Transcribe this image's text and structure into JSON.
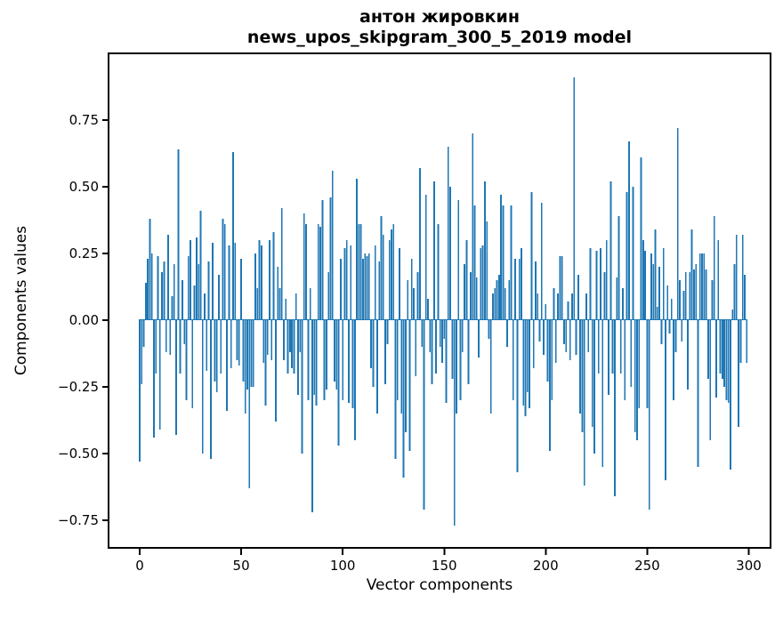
{
  "chart_data": {
    "type": "bar",
    "title_line1": "антон жировкин",
    "title_line2": "news_upos_skipgram_300_5_2019 model",
    "xlabel": "Vector components",
    "ylabel": "Components values",
    "n_points": 300,
    "xticks": [
      0,
      50,
      100,
      150,
      200,
      250,
      300
    ],
    "yticks": [
      {
        "label": "0.75",
        "value": 0.75
      },
      {
        "label": "0.50",
        "value": 0.5
      },
      {
        "label": "0.25",
        "value": 0.25
      },
      {
        "label": "0.00",
        "value": 0.0
      },
      {
        "label": "−0.25",
        "value": -0.25
      },
      {
        "label": "−0.50",
        "value": -0.5
      },
      {
        "label": "−0.75",
        "value": -0.75
      }
    ],
    "xlim": [
      -15.4,
      314.4
    ],
    "ylim": [
      -0.85,
      1.0
    ],
    "grid": false,
    "bar_color": "#1f77b4",
    "axis_color": "#000000",
    "values": [
      -0.53,
      -0.24,
      -0.1,
      0.14,
      0.23,
      0.38,
      0.25,
      -0.44,
      -0.2,
      0.24,
      -0.41,
      0.18,
      0.22,
      -0.12,
      0.32,
      -0.13,
      0.09,
      0.21,
      -0.43,
      0.64,
      -0.2,
      0.15,
      -0.09,
      -0.3,
      0.24,
      0.3,
      -0.33,
      0.13,
      0.31,
      0.21,
      0.41,
      -0.5,
      0.1,
      -0.19,
      0.22,
      -0.52,
      0.29,
      -0.23,
      -0.27,
      0.17,
      -0.2,
      0.38,
      0.36,
      -0.34,
      0.28,
      -0.18,
      0.63,
      0.29,
      -0.15,
      -0.17,
      0.23,
      -0.23,
      -0.35,
      -0.26,
      -0.63,
      -0.25,
      -0.25,
      0.25,
      0.12,
      0.3,
      0.28,
      -0.16,
      -0.32,
      -0.13,
      0.3,
      -0.15,
      0.33,
      -0.38,
      0.2,
      0.12,
      0.42,
      -0.15,
      0.08,
      -0.2,
      -0.12,
      -0.18,
      -0.2,
      0.1,
      -0.28,
      -0.12,
      -0.5,
      0.4,
      0.36,
      -0.3,
      0.12,
      -0.72,
      -0.28,
      -0.32,
      0.36,
      0.35,
      0.45,
      -0.3,
      -0.26,
      0.18,
      0.46,
      0.56,
      -0.23,
      -0.26,
      -0.47,
      0.23,
      -0.3,
      0.27,
      0.3,
      -0.31,
      0.28,
      -0.33,
      -0.45,
      0.53,
      0.36,
      0.36,
      0.23,
      0.25,
      0.24,
      0.25,
      -0.18,
      -0.25,
      0.28,
      -0.35,
      0.22,
      0.39,
      0.32,
      -0.24,
      -0.09,
      0.3,
      0.34,
      0.36,
      -0.52,
      -0.3,
      0.27,
      -0.35,
      -0.59,
      -0.42,
      0.15,
      -0.49,
      0.23,
      0.12,
      -0.21,
      0.18,
      0.57,
      -0.1,
      -0.71,
      0.47,
      0.08,
      -0.12,
      -0.24,
      0.52,
      -0.2,
      0.36,
      -0.1,
      -0.16,
      -0.07,
      -0.31,
      0.65,
      0.5,
      -0.22,
      -0.77,
      -0.35,
      0.45,
      -0.3,
      -0.12,
      0.21,
      0.3,
      -0.24,
      0.18,
      0.7,
      0.43,
      0.16,
      -0.14,
      0.27,
      0.28,
      0.52,
      0.37,
      -0.07,
      -0.35,
      0.1,
      0.12,
      0.15,
      0.17,
      0.47,
      0.43,
      0.12,
      -0.1,
      0.15,
      0.43,
      -0.3,
      0.23,
      -0.57,
      0.23,
      0.27,
      -0.32,
      -0.36,
      -0.27,
      -0.33,
      0.48,
      -0.18,
      0.22,
      0.1,
      -0.08,
      0.44,
      -0.13,
      0.06,
      -0.23,
      -0.49,
      -0.3,
      0.12,
      -0.16,
      0.1,
      0.24,
      0.24,
      -0.09,
      -0.12,
      0.07,
      -0.15,
      0.1,
      0.91,
      -0.13,
      0.17,
      -0.35,
      -0.42,
      -0.62,
      0.1,
      -0.12,
      0.27,
      -0.4,
      -0.5,
      0.26,
      -0.2,
      0.27,
      -0.55,
      0.18,
      0.3,
      -0.28,
      0.52,
      -0.2,
      -0.66,
      0.16,
      0.39,
      -0.2,
      0.12,
      -0.3,
      0.48,
      0.67,
      -0.25,
      0.5,
      -0.42,
      -0.45,
      -0.33,
      0.61,
      0.3,
      0.26,
      -0.33,
      -0.71,
      0.25,
      0.21,
      0.34,
      0.05,
      0.2,
      -0.09,
      0.27,
      -0.6,
      0.13,
      -0.05,
      0.08,
      -0.3,
      -0.12,
      0.72,
      0.15,
      -0.08,
      0.11,
      0.18,
      -0.26,
      0.18,
      0.34,
      0.19,
      0.21,
      -0.55,
      0.25,
      0.25,
      0.25,
      0.19,
      -0.22,
      -0.45,
      0.15,
      0.39,
      -0.29,
      0.3,
      -0.2,
      -0.22,
      -0.25,
      -0.3,
      -0.31,
      -0.56,
      0.04,
      0.21,
      0.32,
      -0.4,
      -0.16,
      0.32,
      0.17,
      -0.16
    ]
  }
}
